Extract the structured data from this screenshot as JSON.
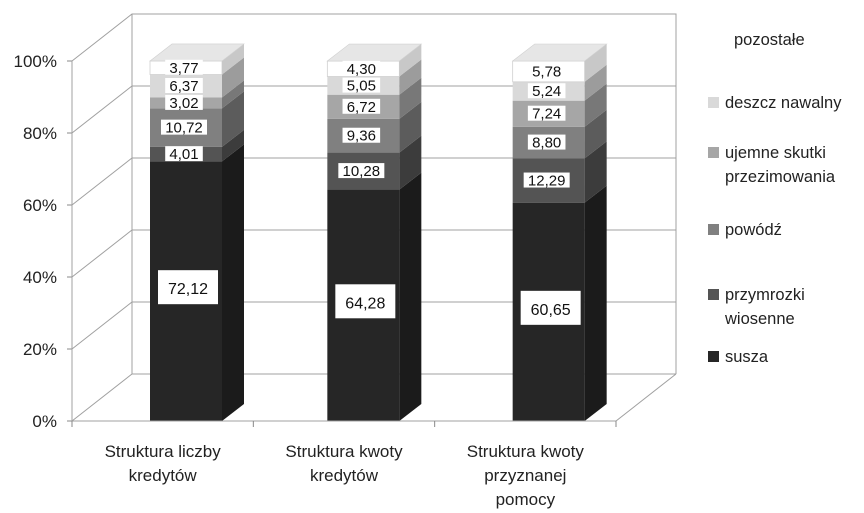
{
  "chart_data": {
    "type": "bar",
    "stacked": true,
    "three_d": true,
    "title": "",
    "xlabel": "",
    "ylabel": "",
    "ylim": [
      0,
      100
    ],
    "y_ticks": [
      "0%",
      "20%",
      "40%",
      "60%",
      "80%",
      "100%"
    ],
    "grid": true,
    "legend_position": "right",
    "categories": [
      [
        "Struktura liczby",
        "kredytów"
      ],
      [
        "Struktura kwoty",
        "kredytów"
      ],
      [
        "Struktura kwoty",
        "przyznanej",
        "pomocy"
      ]
    ],
    "series": [
      {
        "name": "susza",
        "legend": [
          "susza"
        ],
        "color": "#262626",
        "values": [
          72.12,
          64.28,
          60.65
        ],
        "labels": [
          "72,12",
          "64,28",
          "60,65"
        ]
      },
      {
        "name": "przymrozki wiosenne",
        "legend": [
          "przymrozki",
          "wiosenne"
        ],
        "color": "#545454",
        "values": [
          4.01,
          10.28,
          12.29
        ],
        "labels": [
          "4,01",
          "10,28",
          "12,29"
        ]
      },
      {
        "name": "powódź",
        "legend": [
          "powódź"
        ],
        "color": "#808080",
        "values": [
          10.72,
          9.36,
          8.8
        ],
        "labels": [
          "10,72",
          "9,36",
          "8,80"
        ]
      },
      {
        "name": "ujemne skutki przezimowania",
        "legend": [
          "ujemne skutki",
          "przezimowania"
        ],
        "color": "#a6a6a6",
        "values": [
          3.02,
          6.72,
          7.24
        ],
        "labels": [
          "3,02",
          "6,72",
          "7,24"
        ]
      },
      {
        "name": "deszcz nawalny",
        "legend": [
          "deszcz nawalny"
        ],
        "color": "#d9d9d9",
        "values": [
          6.37,
          5.05,
          5.24
        ],
        "labels": [
          "6,37",
          "5,05",
          "5,24"
        ]
      },
      {
        "name": "pozostałe",
        "legend": [
          "pozostałe"
        ],
        "color": "#ffffff",
        "values": [
          3.77,
          4.3,
          5.78
        ],
        "labels": [
          "3,77",
          "4,30",
          "5,78"
        ]
      }
    ]
  }
}
